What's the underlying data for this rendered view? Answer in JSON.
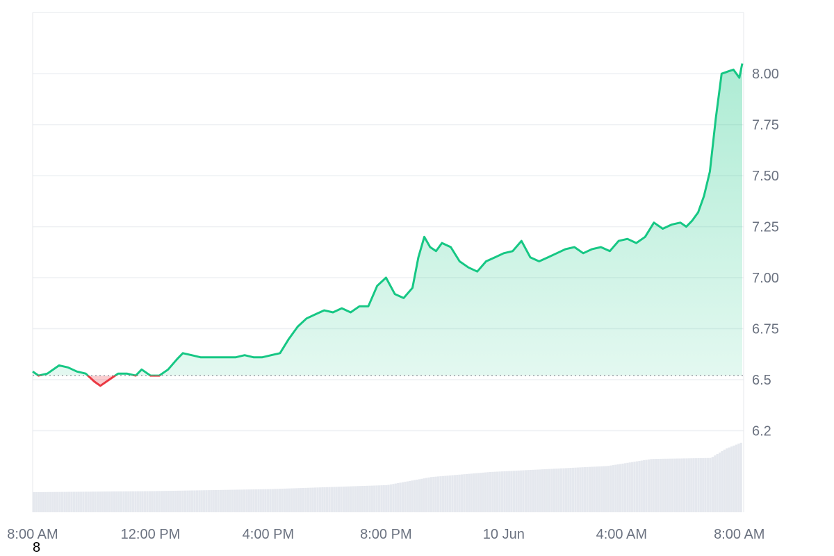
{
  "chart_data": {
    "type": "area",
    "baseline": 6.52,
    "ylim": [
      5.85,
      8.3
    ],
    "y_ticks": [
      "8.00",
      "7.75",
      "7.50",
      "7.25",
      "7.00",
      "6.75",
      "6.5",
      "6.2"
    ],
    "y_tick_values": [
      8.0,
      7.75,
      7.5,
      7.25,
      7.0,
      6.75,
      6.5,
      6.25
    ],
    "x_ticks": [
      "8:00 AM",
      "12:00 PM",
      "4:00 PM",
      "8:00 PM",
      "10 Jun",
      "4:00 AM",
      "8:00 AM"
    ],
    "x_tick_hours": [
      0,
      4,
      8,
      12,
      16,
      20,
      24
    ],
    "x_hours_range": [
      0,
      24.1
    ],
    "series": [
      {
        "hours": [
          0,
          0.2,
          0.5,
          0.9,
          1.2,
          1.5,
          1.8,
          2.1,
          2.3,
          2.6,
          2.9,
          3.2,
          3.5,
          3.7,
          4.0,
          4.3,
          4.6,
          4.9,
          5.1,
          5.4,
          5.7,
          6.0,
          6.3,
          6.6,
          6.9,
          7.2,
          7.5,
          7.8,
          8.1,
          8.4,
          8.7,
          9.0,
          9.3,
          9.6,
          9.9,
          10.2,
          10.5,
          10.8,
          11.1,
          11.4,
          11.7,
          12.0,
          12.3,
          12.6,
          12.9,
          13.1,
          13.3,
          13.5,
          13.7,
          13.9,
          14.2,
          14.5,
          14.8,
          15.1,
          15.4,
          15.7,
          16.0,
          16.3,
          16.6,
          16.9,
          17.2,
          17.5,
          17.8,
          18.1,
          18.4,
          18.7,
          19.0,
          19.3,
          19.6,
          19.9,
          20.2,
          20.5,
          20.8,
          21.1,
          21.4,
          21.7,
          22.0,
          22.2,
          22.4,
          22.6,
          22.8,
          23.0,
          23.2,
          23.4,
          23.6,
          23.8,
          24.0,
          24.1
        ],
        "values": [
          6.54,
          6.52,
          6.53,
          6.57,
          6.56,
          6.54,
          6.53,
          6.49,
          6.47,
          6.5,
          6.53,
          6.53,
          6.52,
          6.55,
          6.52,
          6.52,
          6.55,
          6.6,
          6.63,
          6.62,
          6.61,
          6.61,
          6.61,
          6.61,
          6.61,
          6.62,
          6.61,
          6.61,
          6.62,
          6.63,
          6.7,
          6.76,
          6.8,
          6.82,
          6.84,
          6.83,
          6.85,
          6.83,
          6.86,
          6.86,
          6.96,
          7.0,
          6.92,
          6.9,
          6.95,
          7.1,
          7.2,
          7.15,
          7.13,
          7.17,
          7.15,
          7.08,
          7.05,
          7.03,
          7.08,
          7.1,
          7.12,
          7.13,
          7.18,
          7.1,
          7.08,
          7.1,
          7.12,
          7.14,
          7.15,
          7.12,
          7.14,
          7.15,
          7.13,
          7.18,
          7.19,
          7.17,
          7.2,
          7.27,
          7.24,
          7.26,
          7.27,
          7.25,
          7.28,
          7.32,
          7.4,
          7.52,
          7.78,
          8.0,
          8.01,
          8.02,
          7.98,
          8.05
        ]
      }
    ],
    "volume": {
      "hours": [
        0,
        4,
        8,
        12,
        13.5,
        15.5,
        17.5,
        19.5,
        21,
        23,
        23.5,
        24.1
      ],
      "values": [
        0.2,
        0.21,
        0.23,
        0.27,
        0.35,
        0.4,
        0.43,
        0.46,
        0.53,
        0.54,
        0.63,
        0.7
      ]
    },
    "colors": {
      "up": "#16c784",
      "down": "#ea3943",
      "grid": "#eef0f3",
      "volume": "#e5e8ee",
      "baseline": "#8a8f98"
    }
  },
  "footer": {
    "label": "8"
  }
}
